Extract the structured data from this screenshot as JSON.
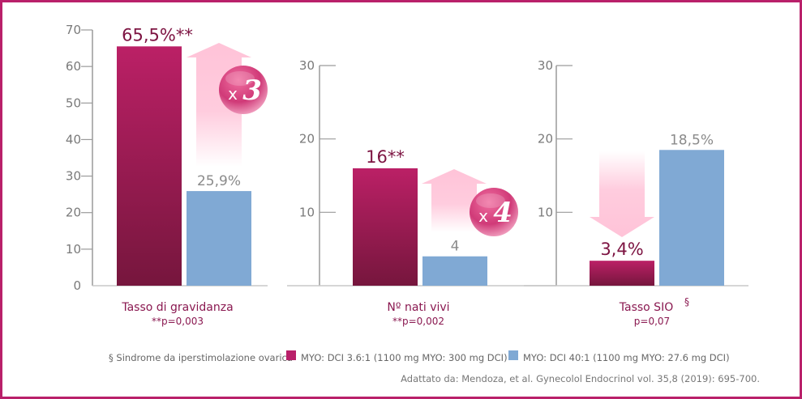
{
  "chart_data": [
    {
      "type": "bar",
      "title": "",
      "categories": [
        "Tasso di gravidanza"
      ],
      "category_note": "**p=0,003",
      "ylim": [
        0,
        70
      ],
      "yticks": [
        0,
        10,
        20,
        30,
        40,
        50,
        60,
        70
      ],
      "series": [
        {
          "name": "MYO: DCI 3.6:1 (1100 mg MYO: 300 mg DCI)",
          "values": [
            65.5
          ],
          "label": "65,5%**"
        },
        {
          "name": "MYO: DCI 40:1 (1100 mg MYO: 27.6 mg DCI)",
          "values": [
            25.9
          ],
          "label": "25,9%"
        }
      ],
      "annotation": {
        "type": "arrow-up",
        "text_prefix": "x",
        "text_value": "3"
      }
    },
    {
      "type": "bar",
      "title": "",
      "categories": [
        "Nº nati vivi"
      ],
      "category_note": "**p=0,002",
      "ylim": [
        0,
        30
      ],
      "yticks": [
        10,
        20,
        30
      ],
      "series": [
        {
          "name": "MYO: DCI 3.6:1 (1100 mg MYO: 300 mg DCI)",
          "values": [
            16
          ],
          "label": "16**"
        },
        {
          "name": "MYO: DCI 40:1 (1100 mg MYO: 27.6 mg DCI)",
          "values": [
            4
          ],
          "label": "4"
        }
      ],
      "annotation": {
        "type": "arrow-up",
        "text_prefix": "x",
        "text_value": "4"
      }
    },
    {
      "type": "bar",
      "title": "",
      "categories": [
        "Tasso SIO"
      ],
      "category_superscript": "§",
      "category_note": "p=0,07",
      "ylim": [
        0,
        30
      ],
      "yticks": [
        10,
        20,
        30
      ],
      "series": [
        {
          "name": "MYO: DCI 3.6:1 (1100 mg MYO: 300 mg DCI)",
          "values": [
            3.4
          ],
          "label": "3,4%"
        },
        {
          "name": "MYO: DCI 40:1 (1100 mg MYO: 27.6 mg DCI)",
          "values": [
            18.5
          ],
          "label": "18,5%"
        }
      ],
      "annotation": {
        "type": "arrow-down"
      }
    }
  ],
  "legend": {
    "footnote": "§ Sindrome da iperstimolazione ovarica",
    "items": [
      {
        "label": "MYO: DCI 3.6:1 (1100 mg MYO: 300 mg DCI)",
        "color": "#b9206a"
      },
      {
        "label": "MYO: DCI 40:1 (1100 mg MYO: 27.6 mg DCI)",
        "color": "#80a9d4"
      }
    ]
  },
  "source": "Adattato da: Mendoza, et al. Gynecolol Endocrinol vol. 35,8 (2019): 695-700.",
  "colors": {
    "frame": "#b9206a",
    "magenta_top": "#bb2066",
    "magenta_bottom": "#76163d",
    "blue": "#80a9d4",
    "arrow_pink": "#ffc3d8",
    "axis": "#9a9a9a"
  }
}
